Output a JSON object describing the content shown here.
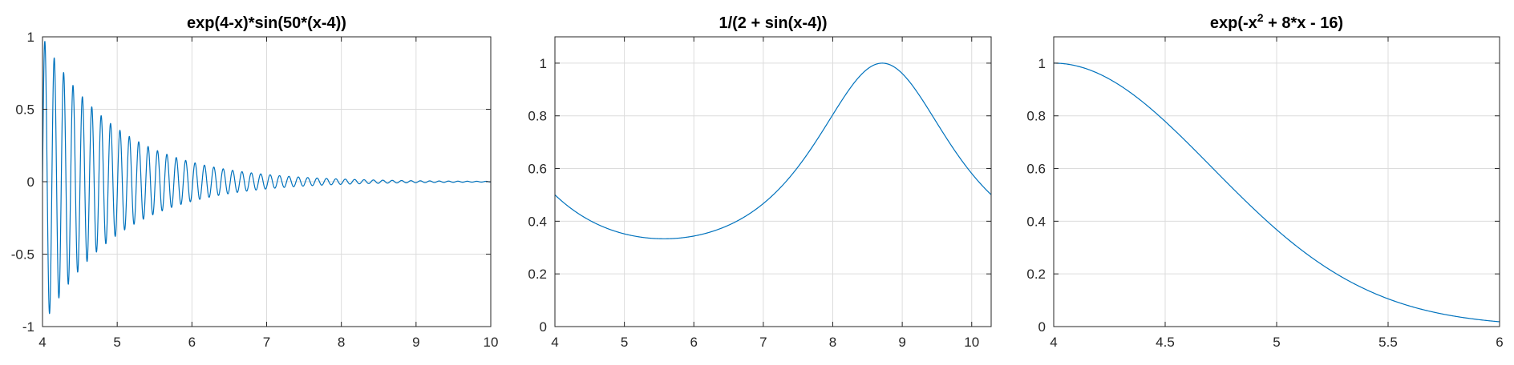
{
  "figure": {
    "background": "#ffffff",
    "line_color": "#0072bd"
  },
  "chart_data": [
    {
      "type": "line",
      "title": "exp(4-x)*sin(50*(x-4))",
      "title_parts": [
        {
          "text": "exp(4-x)*sin(50*(x-4))",
          "sup": false
        }
      ],
      "xlabel": "",
      "ylabel": "",
      "xlim": [
        4,
        10
      ],
      "ylim": [
        -1,
        1
      ],
      "grid": true,
      "xticks": [
        4,
        5,
        6,
        7,
        8,
        9,
        10
      ],
      "xtick_labels": [
        "4",
        "5",
        "6",
        "7",
        "8",
        "9",
        "10"
      ],
      "yticks": [
        -1,
        -0.5,
        0,
        0.5,
        1
      ],
      "ytick_labels": [
        "-1",
        "-0.5",
        "0",
        "0.5",
        "1"
      ],
      "series": [
        {
          "expression": "exp(4-x)*sin(50*(x-4))",
          "x_range": [
            4,
            10
          ],
          "samples": 3000
        }
      ]
    },
    {
      "type": "line",
      "title": "1/(2 + sin(x-4))",
      "title_parts": [
        {
          "text": "1/(2 + sin(x-4))",
          "sup": false
        }
      ],
      "xlabel": "",
      "ylabel": "",
      "xlim": [
        4,
        10.28
      ],
      "ylim": [
        0,
        1.1
      ],
      "grid": true,
      "xticks": [
        4,
        5,
        6,
        7,
        8,
        9,
        10
      ],
      "xtick_labels": [
        "4",
        "5",
        "6",
        "7",
        "8",
        "9",
        "10"
      ],
      "yticks": [
        0,
        0.2,
        0.4,
        0.6,
        0.8,
        1
      ],
      "ytick_labels": [
        "0",
        "0.2",
        "0.4",
        "0.6",
        "0.8",
        "1"
      ],
      "series": [
        {
          "expression": "1/(2 + sin(x-4))",
          "x_range": [
            4,
            10.28
          ],
          "samples": 800
        }
      ]
    },
    {
      "type": "line",
      "title": "exp(-x2 + 8*x - 16)",
      "title_parts": [
        {
          "text": "exp(-x",
          "sup": false
        },
        {
          "text": "2",
          "sup": true
        },
        {
          "text": " + 8*x - 16)",
          "sup": false
        }
      ],
      "xlabel": "",
      "ylabel": "",
      "xlim": [
        4,
        6
      ],
      "ylim": [
        0,
        1.1
      ],
      "grid": true,
      "xticks": [
        4,
        4.5,
        5,
        5.5,
        6
      ],
      "xtick_labels": [
        "4",
        "4.5",
        "5",
        "5.5",
        "6"
      ],
      "yticks": [
        0,
        0.2,
        0.4,
        0.6,
        0.8,
        1
      ],
      "ytick_labels": [
        "0",
        "0.2",
        "0.4",
        "0.6",
        "0.8",
        "1"
      ],
      "series": [
        {
          "expression": "exp(-x^2 + 8*x - 16)",
          "x_range": [
            4,
            6
          ],
          "samples": 600
        }
      ]
    }
  ]
}
